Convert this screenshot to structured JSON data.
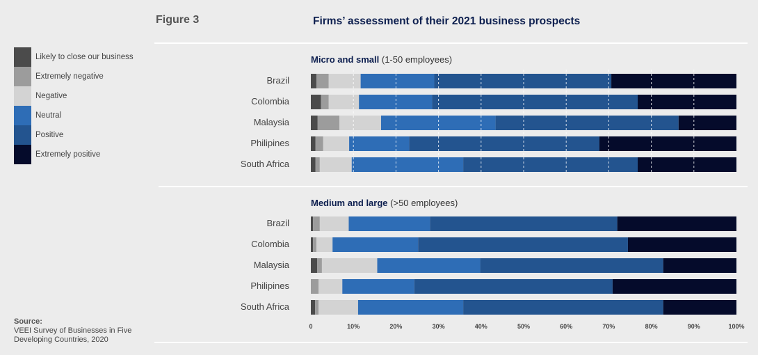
{
  "figure_label": "Figure 3",
  "chart_data": {
    "type": "bar",
    "orientation": "horizontal",
    "stacked": "percent",
    "title": "Firms’ assessment of their 2021 business prospects",
    "legend_placement": "left",
    "categories_legend": [
      "Likely to close our business",
      "Extremely negative",
      "Negative",
      "Neutral",
      "Positive",
      "Extremely positive"
    ],
    "colors": [
      "#4b4b4b",
      "#9c9c9c",
      "#d3d3d3",
      "#2e6db6",
      "#23548f",
      "#050b2b"
    ],
    "xlim": [
      0,
      100
    ],
    "x_ticks": [
      "0",
      "10%",
      "20%",
      "30%",
      "40%",
      "50%",
      "60%",
      "70%",
      "80%",
      "90%",
      "100%"
    ],
    "panels": [
      {
        "title_bold": "Micro and small",
        "title_rest": " (1-50 employees)",
        "gridlines": "dashed",
        "rows": [
          {
            "country": "Brazil",
            "values": [
              1.3,
              2.9,
              7.5,
              17.3,
              41.6,
              29.4
            ]
          },
          {
            "country": "Colombia",
            "values": [
              2.4,
              1.8,
              7.1,
              17.2,
              48.3,
              23.2
            ]
          },
          {
            "country": "Malaysia",
            "values": [
              1.6,
              5.1,
              9.8,
              26.9,
              43.0,
              13.6
            ]
          },
          {
            "country": "Philipines",
            "values": [
              1.1,
              1.8,
              6.1,
              14.1,
              44.7,
              32.2
            ]
          },
          {
            "country": "South Africa",
            "values": [
              1.1,
              1.0,
              7.5,
              26.2,
              41.0,
              23.2
            ]
          }
        ]
      },
      {
        "title_bold": "Medium and large",
        "title_rest": " (>50 employees)",
        "gridlines": "none",
        "rows": [
          {
            "country": "Brazil",
            "values": [
              0.5,
              1.6,
              6.8,
              19.1,
              44.0,
              28.0
            ]
          },
          {
            "country": "Colombia",
            "values": [
              0.5,
              0.8,
              3.8,
              20.1,
              49.3,
              25.5
            ]
          },
          {
            "country": "Malaysia",
            "values": [
              1.5,
              1.1,
              13.0,
              24.2,
              43.0,
              17.2
            ]
          },
          {
            "country": "Philipines",
            "values": [
              0.0,
              1.8,
              5.6,
              16.9,
              46.6,
              29.1
            ]
          },
          {
            "country": "South Africa",
            "values": [
              1.0,
              0.8,
              9.3,
              24.7,
              47.0,
              17.2
            ]
          }
        ]
      }
    ]
  },
  "source": {
    "label": "Source:",
    "text": "VEEI Survey of Businesses in Five Developing Countries, 2020"
  }
}
